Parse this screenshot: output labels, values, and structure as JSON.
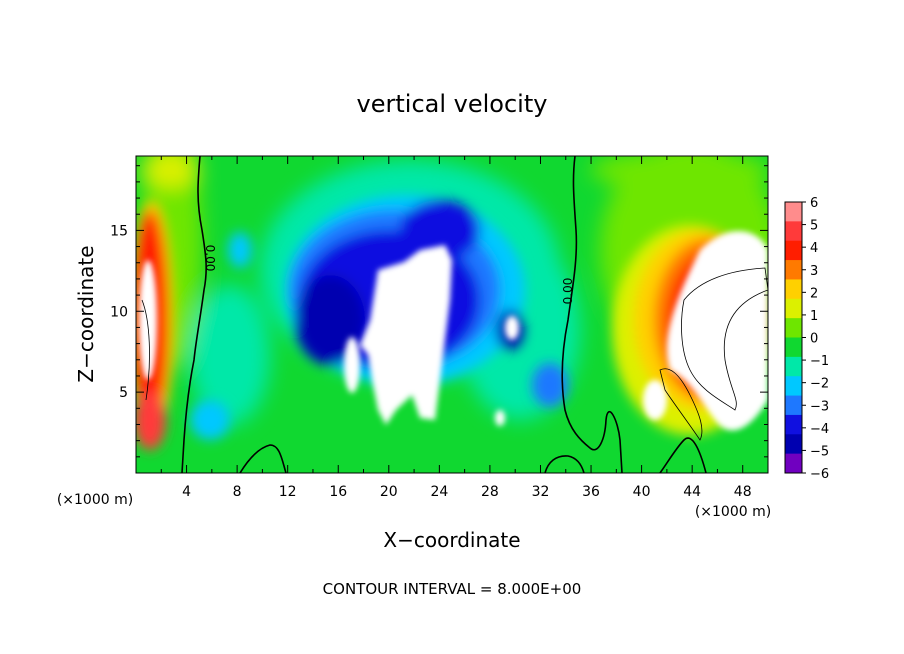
{
  "chart_data": {
    "type": "heatmap",
    "title": "vertical velocity",
    "xlabel": "X−coordinate",
    "ylabel": "Z−coordinate",
    "x_unit_left": "(×1000 m)",
    "x_unit_right": "(×1000 m)",
    "footer": "CONTOUR INTERVAL = 8.000E+00",
    "xlim": [
      0,
      50
    ],
    "ylim": [
      0,
      19.6
    ],
    "x_ticks": [
      4,
      8,
      12,
      16,
      20,
      24,
      28,
      32,
      36,
      40,
      44,
      48
    ],
    "x_tick_labels": [
      "4",
      "8",
      "12",
      "16",
      "20",
      "24",
      "28",
      "32",
      "36",
      "40",
      "44",
      "48"
    ],
    "y_ticks": [
      5,
      10,
      15
    ],
    "y_tick_labels": [
      "5",
      "10",
      "15"
    ],
    "colorbar": {
      "levels": [
        6,
        5,
        4,
        3,
        2,
        1,
        0,
        -1,
        -2,
        -3,
        -4,
        -5,
        -6
      ],
      "labels": [
        "6",
        "5",
        "4",
        "3",
        "2",
        "1",
        "0",
        "−1",
        "−2",
        "−3",
        "−4",
        "−5",
        "−6"
      ],
      "colors": [
        "#ff8c8c",
        "#ff3a3a",
        "#ff1e00",
        "#ff7a00",
        "#ffd000",
        "#dcf000",
        "#6ee600",
        "#10d830",
        "#00e8a8",
        "#00c8ff",
        "#1e78ff",
        "#1010e0",
        "#0000b0",
        "#7000c0"
      ]
    },
    "contour_labels": [
      "0.00",
      "0.00"
    ],
    "fill_ranges": {
      "background": "#10d830",
      "above_max": "#ffffff",
      "below_min": "#ffffff"
    }
  }
}
